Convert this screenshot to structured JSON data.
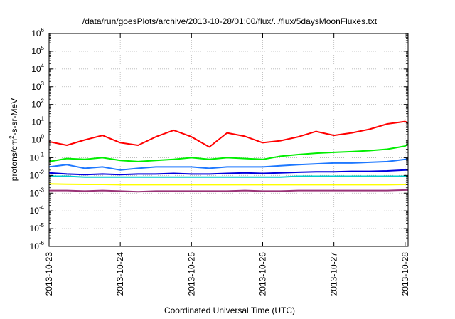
{
  "chart_data": {
    "type": "line",
    "title": "/data/run/goesPlots/archive/2013-10-28/01:00/flux/../flux/5daysMoonFluxes.txt",
    "xlabel": "Coordinated Universal Time (UTC)",
    "ylabel": {
      "prefix": "protons/cm",
      "sup": "2",
      "suffix": "-s-sr-MeV"
    },
    "yscale": "log",
    "ylim": [
      1e-06,
      1000000.0
    ],
    "xlim": [
      "2013-10-23",
      "2013-10-28T01:00"
    ],
    "x_tick_labels": [
      "2013-10-23",
      "2013-10-24",
      "2013-10-25",
      "2013-10-26",
      "2013-10-27",
      "2013-10-28"
    ],
    "y_ticks": [
      {
        "base": "10",
        "exp": "-6"
      },
      {
        "base": "10",
        "exp": "-5"
      },
      {
        "base": "10",
        "exp": "-4"
      },
      {
        "base": "10",
        "exp": "-3"
      },
      {
        "base": "10",
        "exp": "-2"
      },
      {
        "base": "10",
        "exp": "-1"
      },
      {
        "base": "10",
        "exp": "0"
      },
      {
        "base": "10",
        "exp": "1"
      },
      {
        "base": "10",
        "exp": "2"
      },
      {
        "base": "10",
        "exp": "3"
      },
      {
        "base": "10",
        "exp": "4"
      },
      {
        "base": "10",
        "exp": "5"
      },
      {
        "base": "10",
        "exp": "6"
      }
    ],
    "grid": true,
    "legend": "none",
    "series": [
      {
        "color": "#ff0000",
        "x": [
          "2013-10-23T00:00",
          "2013-10-23T06:00",
          "2013-10-23T12:00",
          "2013-10-23T18:00",
          "2013-10-24T00:00",
          "2013-10-24T06:00",
          "2013-10-24T12:00",
          "2013-10-24T18:00",
          "2013-10-25T00:00",
          "2013-10-25T06:00",
          "2013-10-25T12:00",
          "2013-10-25T18:00",
          "2013-10-26T00:00",
          "2013-10-26T06:00",
          "2013-10-26T12:00",
          "2013-10-26T18:00",
          "2013-10-27T00:00",
          "2013-10-27T06:00",
          "2013-10-27T12:00",
          "2013-10-27T18:00",
          "2013-10-28T00:00",
          "2013-10-28T01:00"
        ],
        "y": [
          0.8,
          0.5,
          1.0,
          1.8,
          0.7,
          0.5,
          1.5,
          3.5,
          1.5,
          0.4,
          2.5,
          1.6,
          0.7,
          0.9,
          1.5,
          3.0,
          1.8,
          2.5,
          4.0,
          8.0,
          11.0,
          9.0
        ]
      },
      {
        "color": "#00ee00",
        "x": [
          "2013-10-23T00:00",
          "2013-10-23T06:00",
          "2013-10-23T12:00",
          "2013-10-23T18:00",
          "2013-10-24T00:00",
          "2013-10-24T06:00",
          "2013-10-24T12:00",
          "2013-10-24T18:00",
          "2013-10-25T00:00",
          "2013-10-25T06:00",
          "2013-10-25T12:00",
          "2013-10-25T18:00",
          "2013-10-26T00:00",
          "2013-10-26T06:00",
          "2013-10-26T12:00",
          "2013-10-26T18:00",
          "2013-10-27T00:00",
          "2013-10-27T06:00",
          "2013-10-27T12:00",
          "2013-10-27T18:00",
          "2013-10-28T00:00",
          "2013-10-28T01:00"
        ],
        "y": [
          0.06,
          0.09,
          0.08,
          0.1,
          0.07,
          0.06,
          0.07,
          0.08,
          0.1,
          0.08,
          0.1,
          0.09,
          0.08,
          0.12,
          0.15,
          0.18,
          0.2,
          0.22,
          0.25,
          0.3,
          0.45,
          0.6
        ]
      },
      {
        "color": "#1e78ff",
        "x": [
          "2013-10-23T00:00",
          "2013-10-23T06:00",
          "2013-10-23T12:00",
          "2013-10-23T18:00",
          "2013-10-24T00:00",
          "2013-10-24T06:00",
          "2013-10-24T12:00",
          "2013-10-24T18:00",
          "2013-10-25T00:00",
          "2013-10-25T06:00",
          "2013-10-25T12:00",
          "2013-10-25T18:00",
          "2013-10-26T00:00",
          "2013-10-26T06:00",
          "2013-10-26T12:00",
          "2013-10-26T18:00",
          "2013-10-27T00:00",
          "2013-10-27T06:00",
          "2013-10-27T12:00",
          "2013-10-27T18:00",
          "2013-10-28T00:00",
          "2013-10-28T01:00"
        ],
        "y": [
          0.03,
          0.04,
          0.025,
          0.03,
          0.02,
          0.025,
          0.03,
          0.03,
          0.03,
          0.025,
          0.03,
          0.03,
          0.03,
          0.035,
          0.04,
          0.045,
          0.05,
          0.05,
          0.055,
          0.06,
          0.08,
          0.09
        ]
      },
      {
        "color": "#0000dd",
        "x": [
          "2013-10-23T00:00",
          "2013-10-23T06:00",
          "2013-10-23T12:00",
          "2013-10-23T18:00",
          "2013-10-24T00:00",
          "2013-10-24T06:00",
          "2013-10-24T12:00",
          "2013-10-24T18:00",
          "2013-10-25T00:00",
          "2013-10-25T06:00",
          "2013-10-25T12:00",
          "2013-10-25T18:00",
          "2013-10-26T00:00",
          "2013-10-26T06:00",
          "2013-10-26T12:00",
          "2013-10-26T18:00",
          "2013-10-27T00:00",
          "2013-10-27T06:00",
          "2013-10-27T12:00",
          "2013-10-27T18:00",
          "2013-10-28T00:00",
          "2013-10-28T01:00"
        ],
        "y": [
          0.014,
          0.012,
          0.011,
          0.012,
          0.011,
          0.012,
          0.012,
          0.013,
          0.012,
          0.012,
          0.013,
          0.014,
          0.013,
          0.014,
          0.015,
          0.016,
          0.016,
          0.017,
          0.017,
          0.018,
          0.02,
          0.02
        ]
      },
      {
        "color": "#00cccc",
        "x": [
          "2013-10-23T00:00",
          "2013-10-23T06:00",
          "2013-10-23T12:00",
          "2013-10-23T18:00",
          "2013-10-24T00:00",
          "2013-10-24T06:00",
          "2013-10-24T12:00",
          "2013-10-24T18:00",
          "2013-10-25T00:00",
          "2013-10-25T06:00",
          "2013-10-25T12:00",
          "2013-10-25T18:00",
          "2013-10-26T00:00",
          "2013-10-26T06:00",
          "2013-10-26T12:00",
          "2013-10-26T18:00",
          "2013-10-27T00:00",
          "2013-10-27T06:00",
          "2013-10-27T12:00",
          "2013-10-27T18:00",
          "2013-10-28T00:00",
          "2013-10-28T01:00"
        ],
        "y": [
          0.009,
          0.009,
          0.008,
          0.008,
          0.008,
          0.008,
          0.008,
          0.008,
          0.008,
          0.008,
          0.008,
          0.008,
          0.008,
          0.008,
          0.009,
          0.009,
          0.009,
          0.009,
          0.009,
          0.009,
          0.009,
          0.009
        ]
      },
      {
        "color": "#ffff00",
        "x": [
          "2013-10-23T00:00",
          "2013-10-23T06:00",
          "2013-10-23T12:00",
          "2013-10-23T18:00",
          "2013-10-24T00:00",
          "2013-10-24T06:00",
          "2013-10-24T12:00",
          "2013-10-24T18:00",
          "2013-10-25T00:00",
          "2013-10-25T06:00",
          "2013-10-25T12:00",
          "2013-10-25T18:00",
          "2013-10-26T00:00",
          "2013-10-26T06:00",
          "2013-10-26T12:00",
          "2013-10-26T18:00",
          "2013-10-27T00:00",
          "2013-10-27T06:00",
          "2013-10-27T12:00",
          "2013-10-27T18:00",
          "2013-10-28T00:00",
          "2013-10-28T01:00"
        ],
        "y": [
          0.0033,
          0.0032,
          0.0031,
          0.0031,
          0.003,
          0.003,
          0.003,
          0.003,
          0.003,
          0.003,
          0.003,
          0.003,
          0.003,
          0.003,
          0.003,
          0.003,
          0.003,
          0.003,
          0.003,
          0.003,
          0.0031,
          0.0031
        ]
      },
      {
        "color": "#993377",
        "x": [
          "2013-10-23T00:00",
          "2013-10-23T06:00",
          "2013-10-23T12:00",
          "2013-10-23T18:00",
          "2013-10-24T00:00",
          "2013-10-24T06:00",
          "2013-10-24T12:00",
          "2013-10-24T18:00",
          "2013-10-25T00:00",
          "2013-10-25T06:00",
          "2013-10-25T12:00",
          "2013-10-25T18:00",
          "2013-10-26T00:00",
          "2013-10-26T06:00",
          "2013-10-26T12:00",
          "2013-10-26T18:00",
          "2013-10-27T00:00",
          "2013-10-27T06:00",
          "2013-10-27T12:00",
          "2013-10-27T18:00",
          "2013-10-28T00:00",
          "2013-10-28T01:00"
        ],
        "y": [
          0.0014,
          0.0014,
          0.0013,
          0.0014,
          0.0013,
          0.0012,
          0.0013,
          0.0013,
          0.0013,
          0.0013,
          0.0013,
          0.0014,
          0.0013,
          0.0013,
          0.0014,
          0.0014,
          0.0014,
          0.0014,
          0.0014,
          0.0014,
          0.0015,
          0.0015
        ]
      }
    ]
  }
}
